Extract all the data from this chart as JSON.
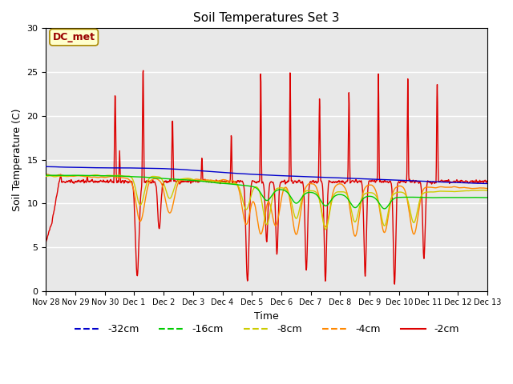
{
  "title": "Soil Temperatures Set 3",
  "xlabel": "Time",
  "ylabel": "Soil Temperature (C)",
  "ylim": [
    0,
    30
  ],
  "bg_color": "#e8e8e8",
  "plot_bg_color": "#e8e8e8",
  "legend_label": "DC_met",
  "legend_box_color": "#ffffcc",
  "legend_box_edge": "#cc0000",
  "series_colors": {
    "-32cm": "#0000cc",
    "-16cm": "#00cc00",
    "-8cm": "#cccc00",
    "-4cm": "#ff8800",
    "-2cm": "#dd0000"
  },
  "tick_labels": [
    "Nov 28",
    "Nov 29",
    "Nov 30",
    "Dec 1",
    "Dec 2",
    "Dec 3",
    "Dec 4",
    "Dec 5",
    "Dec 6",
    "Dec 7",
    "Dec 8",
    "Dec 9",
    "Dec 10",
    "Dec 11",
    "Dec 12",
    "Dec 13"
  ]
}
